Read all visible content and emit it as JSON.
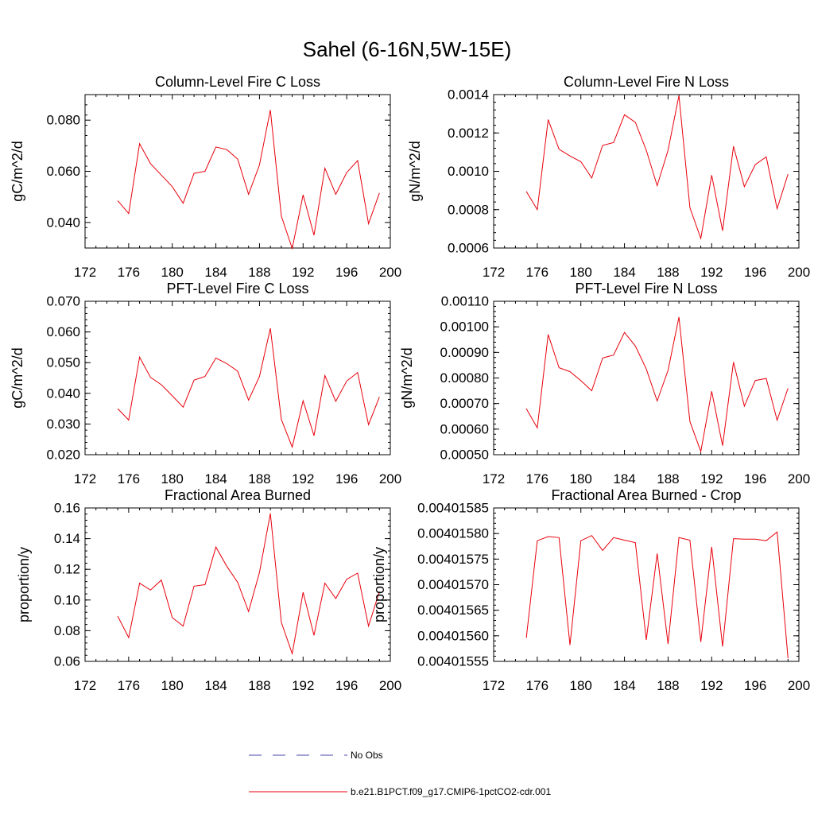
{
  "title": "Sahel (6-16N,5W-15E)",
  "chart_data": [
    {
      "type": "line",
      "title": "Column-Level Fire C Loss",
      "ylabel": "gC/m^2/d",
      "xlim": [
        172,
        200
      ],
      "ylim": [
        0.03,
        0.09
      ],
      "xticks": [
        "172",
        "176",
        "180",
        "184",
        "188",
        "192",
        "196",
        "200"
      ],
      "yticks": [
        "0.040",
        "0.060",
        "0.080"
      ],
      "x": [
        175,
        176,
        177,
        178,
        179,
        180,
        181,
        182,
        183,
        184,
        185,
        186,
        187,
        188,
        189,
        190,
        191,
        192,
        193,
        194,
        195,
        196,
        197,
        198,
        199
      ],
      "series": [
        {
          "name": "b.e21.B1PCT.f09_g17.CMIP6-1pctCO2-cdr.001",
          "values": [
            0.0485,
            0.0435,
            0.0708,
            0.063,
            0.0585,
            0.054,
            0.0475,
            0.0592,
            0.06,
            0.0695,
            0.0685,
            0.0648,
            0.051,
            0.0625,
            0.084,
            0.0425,
            0.0298,
            0.0508,
            0.035,
            0.0612,
            0.051,
            0.0595,
            0.0642,
            0.0395,
            0.0515
          ]
        }
      ]
    },
    {
      "type": "line",
      "title": "Column-Level Fire N Loss",
      "ylabel": "gN/m^2/d",
      "xlim": [
        172,
        200
      ],
      "ylim": [
        0.0006,
        0.0014
      ],
      "xticks": [
        "172",
        "176",
        "180",
        "184",
        "188",
        "192",
        "196",
        "200"
      ],
      "yticks": [
        "0.0006",
        "0.0008",
        "0.0010",
        "0.0012",
        "0.0014"
      ],
      "x": [
        175,
        176,
        177,
        178,
        179,
        180,
        181,
        182,
        183,
        184,
        185,
        186,
        187,
        188,
        189,
        190,
        191,
        192,
        193,
        194,
        195,
        196,
        197,
        198,
        199
      ],
      "series": [
        {
          "name": "b.e21.B1PCT.f09_g17.CMIP6-1pctCO2-cdr.001",
          "values": [
            0.000895,
            0.0008,
            0.00127,
            0.001115,
            0.00108,
            0.00105,
            0.000965,
            0.001135,
            0.00115,
            0.001295,
            0.001255,
            0.00111,
            0.000925,
            0.00111,
            0.001395,
            0.00081,
            0.00065,
            0.00098,
            0.00069,
            0.00113,
            0.00092,
            0.001035,
            0.001075,
            0.000805,
            0.000985
          ]
        }
      ]
    },
    {
      "type": "line",
      "title": "PFT-Level Fire C Loss",
      "ylabel": "gC/m^2/d",
      "xlim": [
        172,
        200
      ],
      "ylim": [
        0.02,
        0.07
      ],
      "xticks": [
        "172",
        "176",
        "180",
        "184",
        "188",
        "192",
        "196",
        "200"
      ],
      "yticks": [
        "0.020",
        "0.030",
        "0.040",
        "0.050",
        "0.060",
        "0.070"
      ],
      "x": [
        175,
        176,
        177,
        178,
        179,
        180,
        181,
        182,
        183,
        184,
        185,
        186,
        187,
        188,
        189,
        190,
        191,
        192,
        193,
        194,
        195,
        196,
        197,
        198,
        199
      ],
      "series": [
        {
          "name": "b.e21.B1PCT.f09_g17.CMIP6-1pctCO2-cdr.001",
          "values": [
            0.035,
            0.0313,
            0.0518,
            0.0452,
            0.0428,
            0.0392,
            0.0355,
            0.0443,
            0.0455,
            0.0515,
            0.0497,
            0.0472,
            0.0378,
            0.0455,
            0.0612,
            0.0315,
            0.0225,
            0.0376,
            0.0262,
            0.0458,
            0.0374,
            0.044,
            0.0468,
            0.0298,
            0.0388
          ]
        }
      ]
    },
    {
      "type": "line",
      "title": "PFT-Level Fire N Loss",
      "ylabel": "gN/m^2/d",
      "xlim": [
        172,
        200
      ],
      "ylim": [
        0.0005,
        0.0011
      ],
      "xticks": [
        "172",
        "176",
        "180",
        "184",
        "188",
        "192",
        "196",
        "200"
      ],
      "yticks": [
        "0.00050",
        "0.00060",
        "0.00070",
        "0.00080",
        "0.00090",
        "0.00100",
        "0.00110"
      ],
      "x": [
        175,
        176,
        177,
        178,
        179,
        180,
        181,
        182,
        183,
        184,
        185,
        186,
        187,
        188,
        189,
        190,
        191,
        192,
        193,
        194,
        195,
        196,
        197,
        198,
        199
      ],
      "series": [
        {
          "name": "b.e21.B1PCT.f09_g17.CMIP6-1pctCO2-cdr.001",
          "values": [
            0.00068,
            0.000605,
            0.00097,
            0.00084,
            0.000825,
            0.00079,
            0.00075,
            0.000878,
            0.00089,
            0.000978,
            0.000925,
            0.000835,
            0.00071,
            0.00083,
            0.001038,
            0.00063,
            0.000512,
            0.000748,
            0.000535,
            0.000862,
            0.00069,
            0.00079,
            0.000798,
            0.000635,
            0.00076
          ]
        }
      ]
    },
    {
      "type": "line",
      "title": "Fractional Area Burned",
      "ylabel": "proportion/y",
      "xlim": [
        172,
        200
      ],
      "ylim": [
        0.06,
        0.16
      ],
      "xticks": [
        "172",
        "176",
        "180",
        "184",
        "188",
        "192",
        "196",
        "200"
      ],
      "yticks": [
        "0.06",
        "0.08",
        "0.10",
        "0.12",
        "0.14",
        "0.16"
      ],
      "x": [
        175,
        176,
        177,
        178,
        179,
        180,
        181,
        182,
        183,
        184,
        185,
        186,
        187,
        188,
        189,
        190,
        191,
        192,
        193,
        194,
        195,
        196,
        197,
        198,
        199
      ],
      "series": [
        {
          "name": "b.e21.B1PCT.f09_g17.CMIP6-1pctCO2-cdr.001",
          "values": [
            0.0895,
            0.0755,
            0.111,
            0.1065,
            0.113,
            0.0885,
            0.083,
            0.109,
            0.11,
            0.1345,
            0.122,
            0.1115,
            0.0925,
            0.118,
            0.1565,
            0.0855,
            0.065,
            0.105,
            0.077,
            0.111,
            0.101,
            0.1135,
            0.1175,
            0.083,
            0.1055
          ]
        }
      ]
    },
    {
      "type": "line",
      "title": "Fractional Area Burned - Crop",
      "ylabel": "proportion/y",
      "xlim": [
        172,
        200
      ],
      "ylim": [
        0.00401555,
        0.00401585
      ],
      "xticks": [
        "172",
        "176",
        "180",
        "184",
        "188",
        "192",
        "196",
        "200"
      ],
      "yticks": [
        "0.00401555",
        "0.00401560",
        "0.00401565",
        "0.00401570",
        "0.00401575",
        "0.00401580",
        "0.00401585"
      ],
      "x": [
        175,
        176,
        177,
        178,
        179,
        180,
        181,
        182,
        183,
        184,
        185,
        186,
        187,
        188,
        189,
        190,
        191,
        192,
        193,
        194,
        195,
        196,
        197,
        198,
        199
      ],
      "series": [
        {
          "name": "b.e21.B1PCT.f09_g17.CMIP6-1pctCO2-cdr.001",
          "values": [
            0.004015596,
            0.004015786,
            0.004015794,
            0.004015792,
            0.004015582,
            0.004015786,
            0.004015796,
            0.004015767,
            0.004015792,
            0.004015787,
            0.004015782,
            0.004015592,
            0.004015761,
            0.004015584,
            0.004015792,
            0.004015787,
            0.004015588,
            0.004015774,
            0.004015579,
            0.00401579,
            0.004015789,
            0.004015789,
            0.004015786,
            0.004015803,
            0.004015556
          ]
        }
      ]
    }
  ],
  "legend": [
    {
      "label": "No Obs",
      "color": "#4a4aa8",
      "style": "dashed"
    },
    {
      "label": "b.e21.B1PCT.f09_g17.CMIP6-1pctCO2-cdr.001",
      "color": "#e8000b",
      "style": "solid"
    }
  ]
}
